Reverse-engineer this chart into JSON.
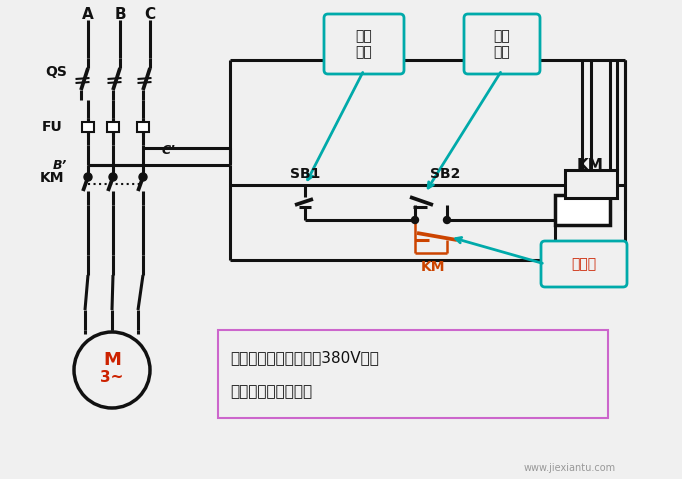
{
  "bg_color": "#f0f0f0",
  "line_color": "#111111",
  "orange_color": "#cc4400",
  "teal_color": "#00aaaa",
  "red_text_color": "#cc2200",
  "note_border_color": "#cc66cc",
  "note_line1": "注意：接触器线圈电压380V时，",
  "note_line2": "采用此种接线方式。",
  "label_A": "A",
  "label_B": "B",
  "label_C": "C",
  "label_QS": "QS",
  "label_FU": "FU",
  "label_Cp": "C’",
  "label_Bp": "B’",
  "label_KM_left": "KM",
  "label_KM_right": "KM",
  "label_KM_orange": "KM",
  "label_M": "M",
  "label_M3": "3~",
  "label_SB1": "SB1",
  "label_SB2": "SB2",
  "label_stop": "停车\n按鈕",
  "label_start": "起动\n按鈕",
  "label_self_hold": "自保持",
  "watermark": "www.jiexiantu.com"
}
